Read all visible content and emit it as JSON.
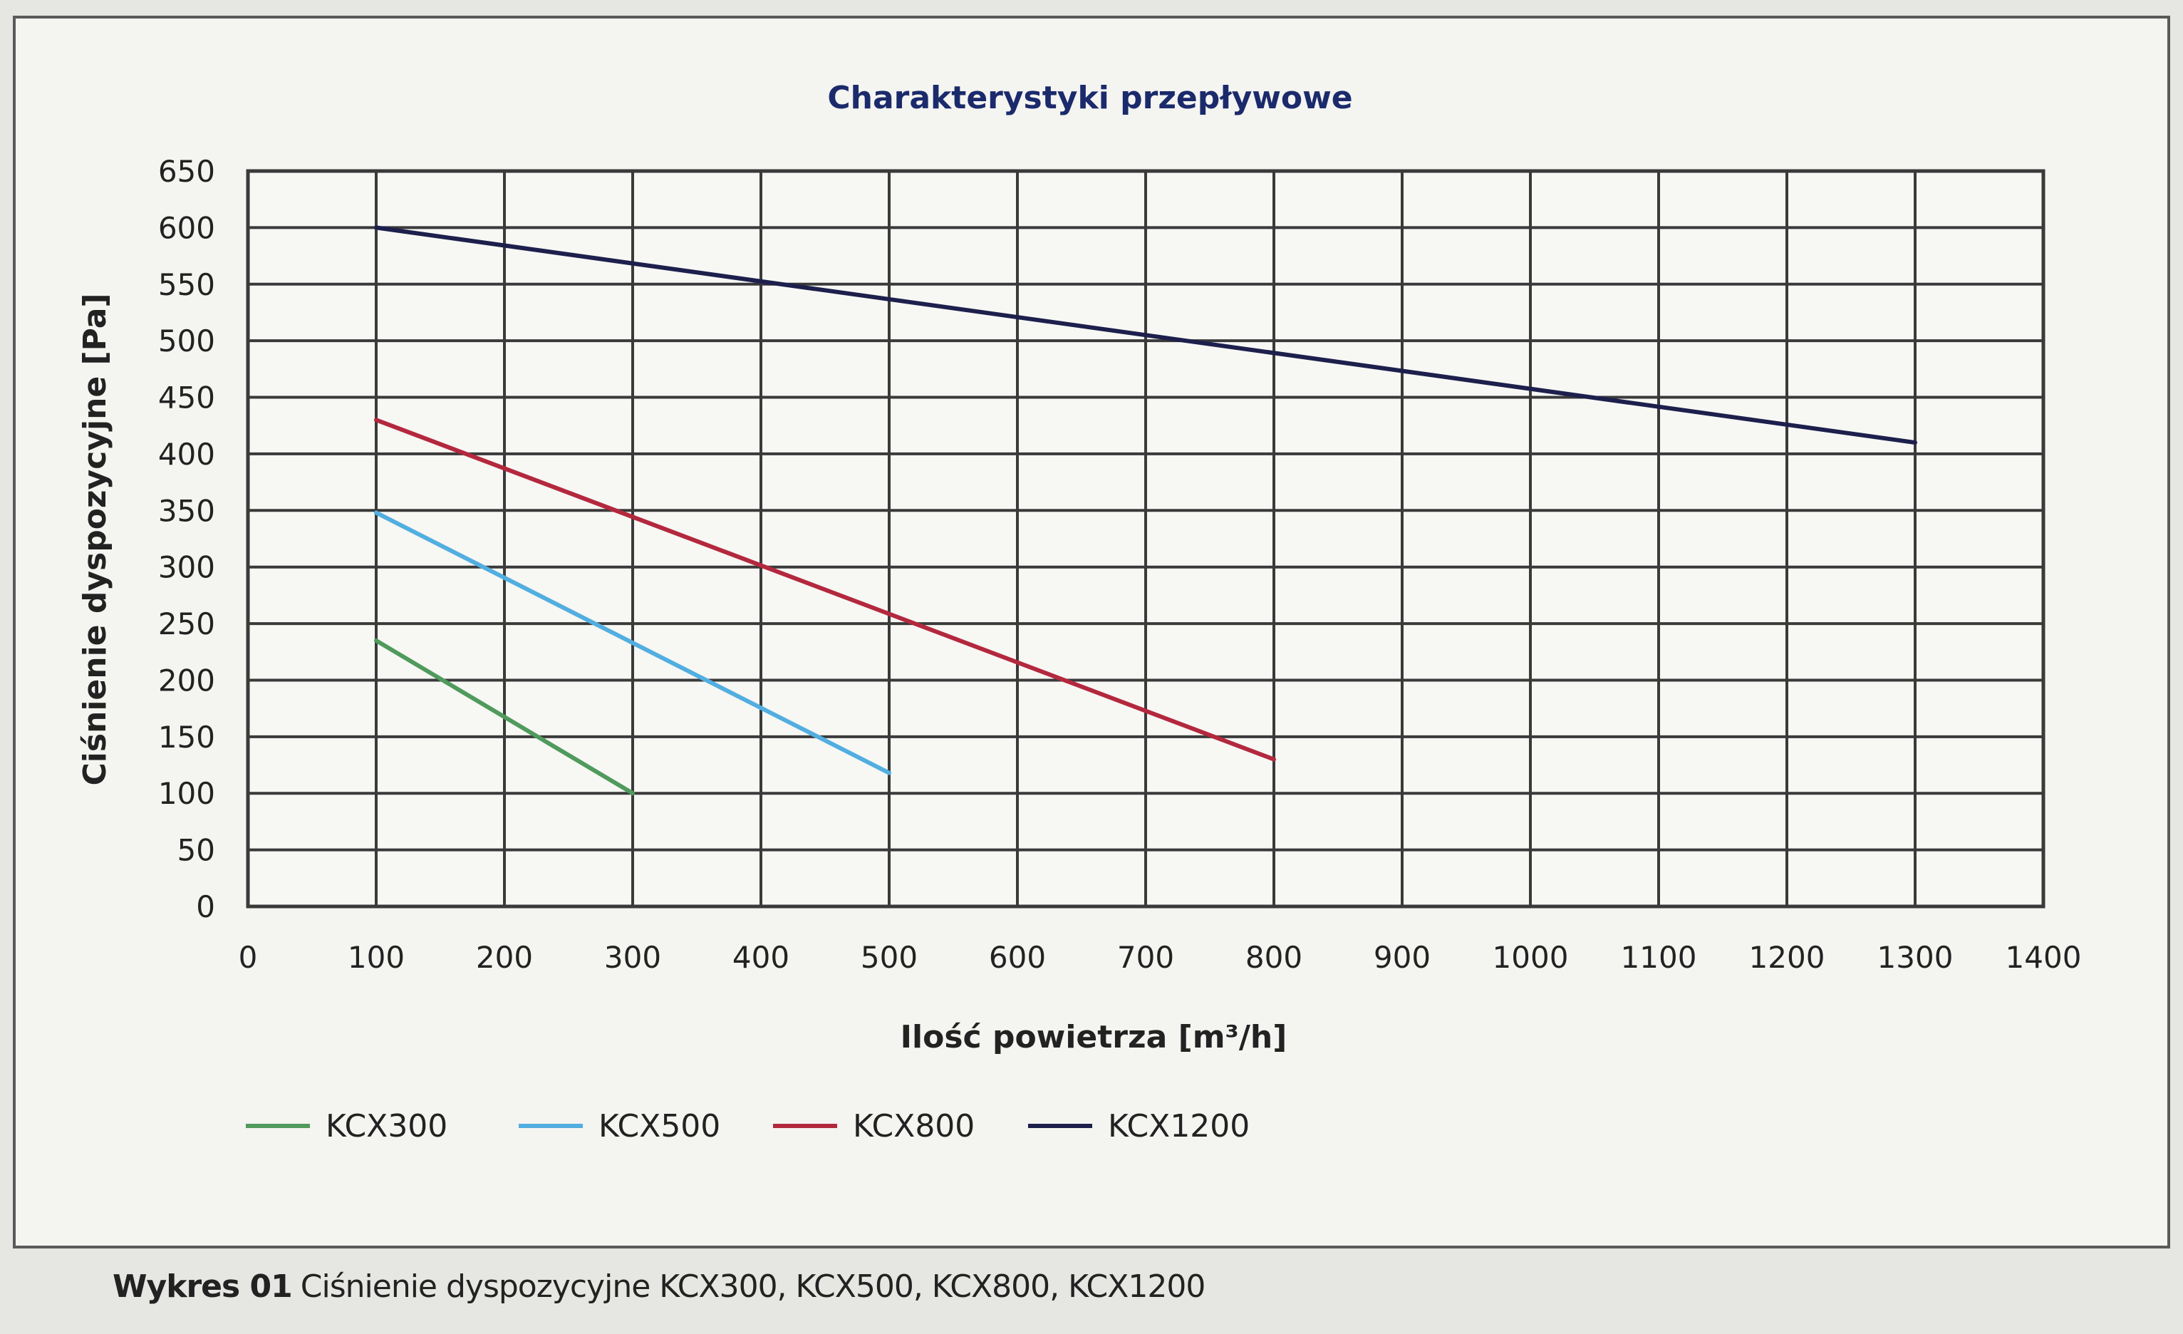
{
  "chart_data": {
    "type": "line",
    "title": "Charakterystyki przepływowe",
    "xlabel": "Ilość powietrza [m³/h]",
    "ylabel": "Ciśnienie dyspozycyjne [Pa]",
    "xlim": [
      0,
      1400
    ],
    "ylim": [
      0,
      650
    ],
    "x_ticks": [
      0,
      100,
      200,
      300,
      400,
      500,
      600,
      700,
      800,
      900,
      1000,
      1100,
      1200,
      1300,
      1400
    ],
    "y_ticks": [
      0,
      50,
      100,
      150,
      200,
      250,
      300,
      350,
      400,
      450,
      500,
      550,
      600,
      650
    ],
    "grid": true,
    "legend_position": "bottom",
    "series": [
      {
        "name": "KCX300",
        "color": "#4f9a5c",
        "x": [
          100,
          300
        ],
        "y": [
          235,
          100
        ]
      },
      {
        "name": "KCX500",
        "color": "#52aee0",
        "x": [
          100,
          500
        ],
        "y": [
          348,
          118
        ]
      },
      {
        "name": "KCX800",
        "color": "#b3283d",
        "x": [
          100,
          800
        ],
        "y": [
          430,
          130
        ]
      },
      {
        "name": "KCX1200",
        "color": "#1d1f4c",
        "x": [
          100,
          1300
        ],
        "y": [
          600,
          410
        ]
      }
    ]
  },
  "caption": {
    "label": "Wykres 01",
    "text": "Ciśnienie dyspozycyjne KCX300, KCX500, KCX800, KCX1200"
  },
  "colors": {
    "title": "#1b2a6b",
    "grid": "#3a3a3a",
    "text": "#222222"
  }
}
